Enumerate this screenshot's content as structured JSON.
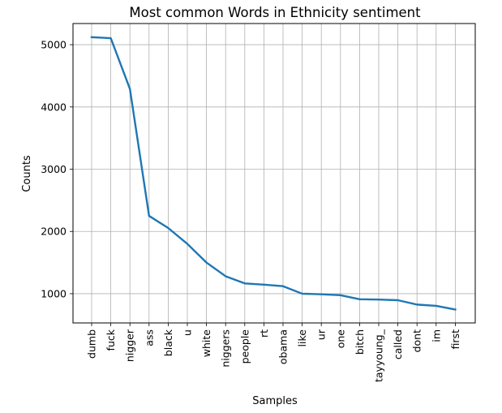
{
  "chart_data": {
    "type": "line",
    "title": "Most common Words in Ethnicity sentiment",
    "xlabel": "Samples",
    "ylabel": "Counts",
    "categories": [
      "dumb",
      "fuck",
      "nigger",
      "ass",
      "black",
      "u",
      "white",
      "niggers",
      "people",
      "rt",
      "obama",
      "like",
      "ur",
      "one",
      "bitch",
      "tayyoung_",
      "called",
      "dont",
      "im",
      "first"
    ],
    "values": [
      5120,
      5105,
      4290,
      2250,
      2055,
      1800,
      1500,
      1280,
      1165,
      1145,
      1120,
      1000,
      990,
      975,
      910,
      905,
      895,
      825,
      805,
      745
    ],
    "yticks": [
      1000,
      2000,
      3000,
      4000,
      5000
    ],
    "ylim": [
      530,
      5340
    ],
    "grid": true,
    "line_color": "#1f77b4"
  }
}
